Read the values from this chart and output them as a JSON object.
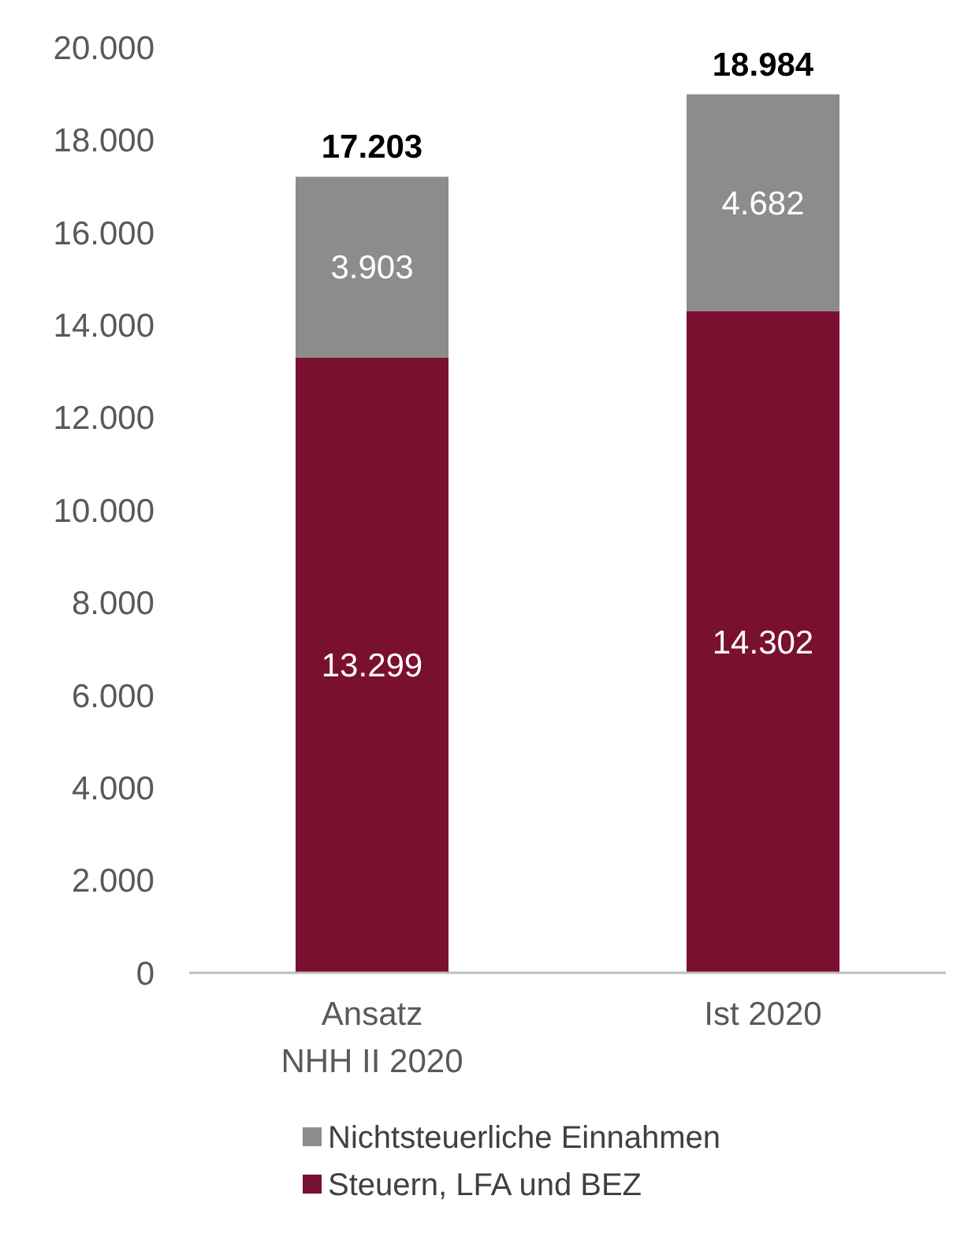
{
  "chart_data": {
    "type": "bar",
    "stacked": true,
    "categories": [
      "Ansatz\nNHH II 2020",
      "Ist 2020"
    ],
    "series": [
      {
        "name": "Steuern, LFA und BEZ",
        "color": "#7a1030",
        "values": [
          13299,
          14302
        ],
        "value_labels": [
          "13.299",
          "14.302"
        ]
      },
      {
        "name": "Nichtsteuerliche Einnahmen",
        "color": "#8c8c8c",
        "values": [
          3903,
          4682
        ],
        "value_labels": [
          "3.903",
          "4.682"
        ]
      }
    ],
    "totals": [
      "17.203",
      "18.984"
    ],
    "ylim": [
      0,
      20000
    ],
    "yticks": [
      {
        "value": 0,
        "label": "0"
      },
      {
        "value": 2000,
        "label": "2.000"
      },
      {
        "value": 4000,
        "label": "4.000"
      },
      {
        "value": 6000,
        "label": "6.000"
      },
      {
        "value": 8000,
        "label": "8.000"
      },
      {
        "value": 10000,
        "label": "10.000"
      },
      {
        "value": 12000,
        "label": "12.000"
      },
      {
        "value": 14000,
        "label": "14.000"
      },
      {
        "value": 16000,
        "label": "16.000"
      },
      {
        "value": 18000,
        "label": "18.000"
      },
      {
        "value": 20000,
        "label": "20.000"
      }
    ],
    "grid": false,
    "legend": "bottom"
  }
}
